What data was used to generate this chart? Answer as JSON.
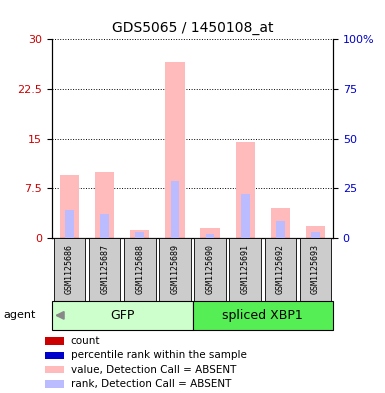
{
  "title": "GDS5065 / 1450108_at",
  "samples": [
    "GSM1125686",
    "GSM1125687",
    "GSM1125688",
    "GSM1125689",
    "GSM1125690",
    "GSM1125691",
    "GSM1125692",
    "GSM1125693"
  ],
  "value_absent": [
    9.5,
    10.0,
    1.2,
    26.5,
    1.5,
    14.5,
    4.5,
    1.8
  ],
  "rank_absent_pct": [
    14.0,
    12.0,
    3.0,
    28.5,
    2.0,
    22.0,
    8.5,
    3.0
  ],
  "ylim_left": [
    0,
    30
  ],
  "ylim_right": [
    0,
    100
  ],
  "yticks_left": [
    0,
    7.5,
    15,
    22.5,
    30
  ],
  "yticks_right": [
    0,
    25,
    50,
    75,
    100
  ],
  "ytick_labels_left": [
    "0",
    "7.5",
    "15",
    "22.5",
    "30"
  ],
  "ytick_labels_right": [
    "0",
    "25",
    "50",
    "75",
    "100%"
  ],
  "bar_width": 0.55,
  "color_value_absent": "#ffbbbb",
  "color_rank_absent": "#bbbbff",
  "color_count": "#cc0000",
  "color_percentile": "#0000cc",
  "left_tick_color": "#cc0000",
  "right_tick_color": "#0000cc",
  "title_fontsize": 10,
  "sample_fontsize": 6,
  "group_fontsize": 9,
  "legend_fontsize": 7.5,
  "gfp_color_light": "#ccffcc",
  "gfp_color_dark": "#44dd44",
  "xbp1_color_light": "#55ee55",
  "xbp1_color_dark": "#33bb33",
  "legend_items": [
    {
      "color": "#cc0000",
      "label": "count"
    },
    {
      "color": "#0000cc",
      "label": "percentile rank within the sample"
    },
    {
      "color": "#ffbbbb",
      "label": "value, Detection Call = ABSENT"
    },
    {
      "color": "#bbbbff",
      "label": "rank, Detection Call = ABSENT"
    }
  ]
}
